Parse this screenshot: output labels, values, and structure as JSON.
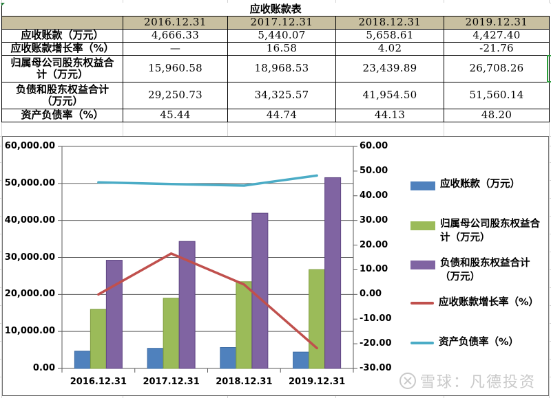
{
  "table": {
    "title": "应收账款表",
    "columns": [
      "",
      "2016.12.31",
      "2017.12.31",
      "2018.12.31",
      "2019.12.31"
    ],
    "rows": [
      {
        "label": "应收账款（万元）",
        "values": [
          "4,666.33",
          "5,440.07",
          "5,658.61",
          "4,427.40"
        ]
      },
      {
        "label": "应收账款增长率（%）",
        "values": [
          "—",
          "16.58",
          "4.02",
          "-21.76"
        ]
      },
      {
        "label": "归属母公司股东权益合计（万元）",
        "values": [
          "15,960.58",
          "18,968.53",
          "23,439.89",
          "26,708.26"
        ]
      },
      {
        "label": "负债和股东权益合计（万元）",
        "values": [
          "29,250.73",
          "34,325.57",
          "41,954.50",
          "51,560.14"
        ]
      },
      {
        "label": "资产负债率（%）",
        "values": [
          "45.44",
          "44.74",
          "44.13",
          "48.20"
        ]
      }
    ]
  },
  "chart_data": {
    "type": "bar",
    "title": "",
    "categories": [
      "2016.12.31",
      "2017.12.31",
      "2018.12.31",
      "2019.12.31"
    ],
    "series": [
      {
        "name": "应收账款（万元）",
        "type": "bar",
        "axis": "left",
        "color": "#4f81bd",
        "values": [
          4666.33,
          5440.07,
          5658.61,
          4427.4
        ]
      },
      {
        "name": "归属母公司股东权益合计（万元）",
        "type": "bar",
        "axis": "left",
        "color": "#9bbb59",
        "values": [
          15960.58,
          18968.53,
          23439.89,
          26708.26
        ]
      },
      {
        "name": "负债和股东权益合计（万元）",
        "type": "bar",
        "axis": "left",
        "color": "#8064a2",
        "values": [
          29250.73,
          34325.57,
          41954.5,
          51560.14
        ]
      },
      {
        "name": "应收账款增长率（%）",
        "type": "line",
        "axis": "right",
        "color": "#c0504d",
        "values": [
          0,
          16.58,
          4.02,
          -21.76
        ]
      },
      {
        "name": "资产负债率（%）",
        "type": "line",
        "axis": "right",
        "color": "#4bacc6",
        "values": [
          45.44,
          44.74,
          44.13,
          48.2
        ]
      }
    ],
    "y_left": {
      "min": 0,
      "max": 60000,
      "step": 10000,
      "ticks": [
        "60,000.00",
        "50,000.00",
        "40,000.00",
        "30,000.00",
        "20,000.00",
        "10,000.00",
        "0.00"
      ]
    },
    "y_right": {
      "min": -30,
      "max": 60,
      "step": 10,
      "ticks": [
        "60.00",
        "50.00",
        "40.00",
        "30.00",
        "20.00",
        "10.00",
        "0.00",
        "-10.00",
        "-20.00",
        "-30.00"
      ]
    },
    "xlabel": "",
    "ylabel": "",
    "grid": true,
    "legend_position": "right"
  },
  "legend": [
    {
      "label": "应收账款（万元）",
      "kind": "swatch",
      "color": "#4f81bd"
    },
    {
      "label": "归属母公司股东权益合计（万元）",
      "kind": "swatch",
      "color": "#9bbb59"
    },
    {
      "label": "负债和股东权益合计（万元）",
      "kind": "swatch",
      "color": "#8064a2"
    },
    {
      "label": "应收账款增长率（%）",
      "kind": "line",
      "color": "#c0504d"
    },
    {
      "label": "资产负债率（%）",
      "kind": "line",
      "color": "#4bacc6"
    }
  ],
  "watermark": {
    "text": "雪球：凡德投资"
  }
}
